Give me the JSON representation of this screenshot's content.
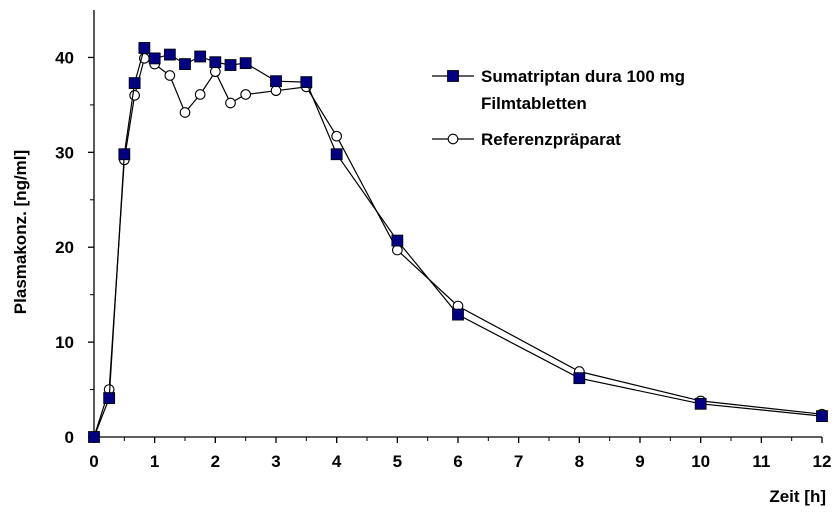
{
  "chart_data": {
    "type": "line",
    "title": "",
    "xlabel": "Zeit [h]",
    "ylabel": "Plasmakonz. [ng/ml]",
    "xlim": [
      0,
      12
    ],
    "ylim": [
      0,
      45
    ],
    "xticks": [
      "0",
      "1",
      "2",
      "3",
      "4",
      "5",
      "6",
      "7",
      "8",
      "9",
      "10",
      "11",
      "12"
    ],
    "yticks": [
      "0",
      "10",
      "20",
      "30",
      "40"
    ],
    "grid": false,
    "legend_position": "top-right",
    "series": [
      {
        "name": "Sumatriptan dura 100 mg Filmtabletten",
        "name_lines": [
          "Sumatriptan dura 100 mg",
          "Filmtabletten"
        ],
        "marker": "filled-square",
        "color": "#000080",
        "x": [
          0,
          0.25,
          0.5,
          0.67,
          0.83,
          1.0,
          1.25,
          1.5,
          1.75,
          2.0,
          2.25,
          2.5,
          3.0,
          3.5,
          4.0,
          5.0,
          6.0,
          8.0,
          10.0,
          12.0
        ],
        "y": [
          0,
          4.1,
          29.8,
          37.3,
          41.0,
          39.9,
          40.3,
          39.3,
          40.1,
          39.5,
          39.2,
          39.4,
          37.5,
          37.4,
          29.8,
          20.7,
          12.9,
          6.2,
          3.5,
          2.2
        ]
      },
      {
        "name": "Referenzpräparat",
        "name_lines": [
          "Referenzpräparat"
        ],
        "marker": "open-circle",
        "color": "#000000",
        "x": [
          0,
          0.25,
          0.5,
          0.67,
          0.83,
          1.0,
          1.25,
          1.5,
          1.75,
          2.0,
          2.25,
          2.5,
          3.0,
          3.5,
          4.0,
          5.0,
          6.0,
          8.0,
          10.0,
          12.0
        ],
        "y": [
          0,
          5.0,
          29.2,
          36.0,
          39.9,
          39.3,
          38.1,
          34.2,
          36.1,
          38.5,
          35.2,
          36.1,
          36.5,
          36.9,
          31.7,
          19.7,
          13.8,
          6.9,
          3.8,
          2.4
        ]
      }
    ]
  }
}
